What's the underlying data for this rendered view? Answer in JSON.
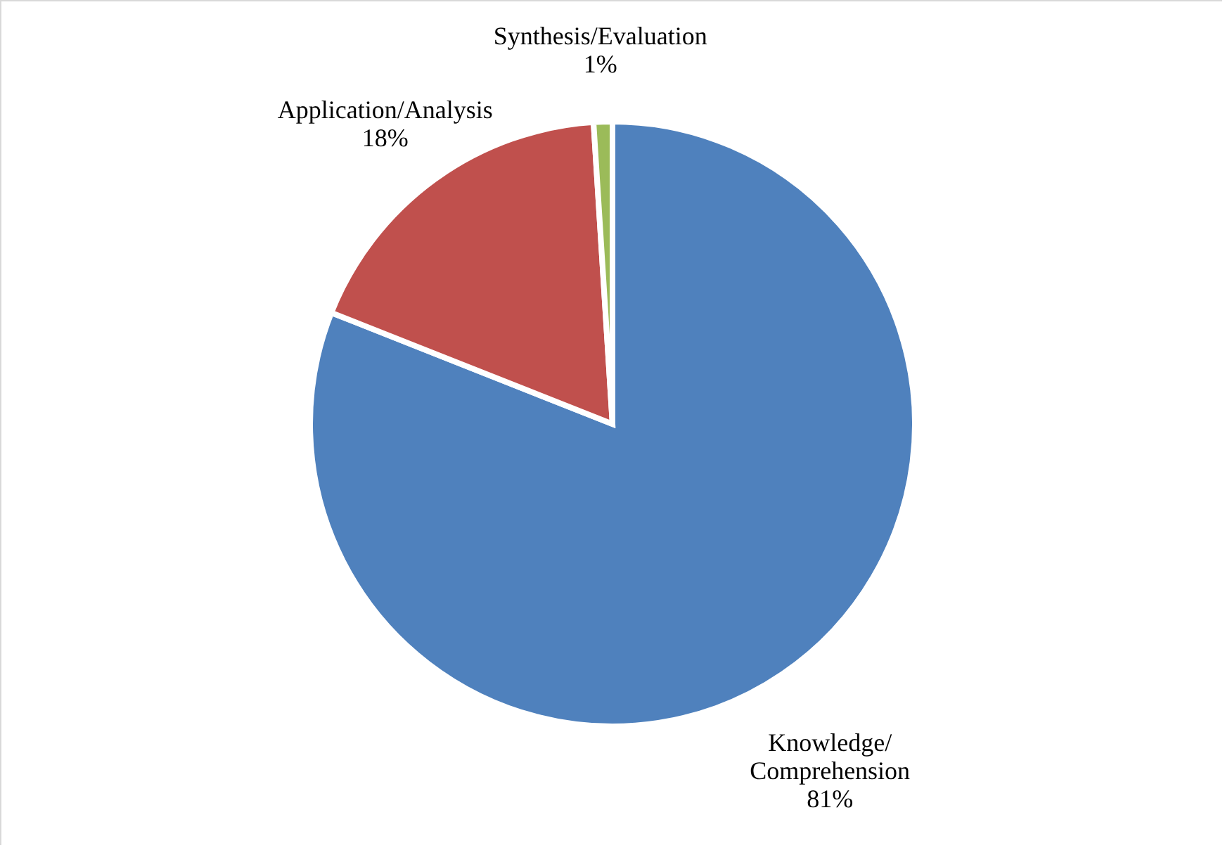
{
  "chart_data": {
    "type": "pie",
    "categories": [
      "Knowledge/Comprehension",
      "Application/Analysis",
      "Synthesis/Evaluation"
    ],
    "values": [
      81,
      18,
      1
    ],
    "colors": [
      "#4f81bd",
      "#c0504d",
      "#9bbb59"
    ],
    "value_labels": [
      "81%",
      "18%",
      "1%"
    ]
  }
}
